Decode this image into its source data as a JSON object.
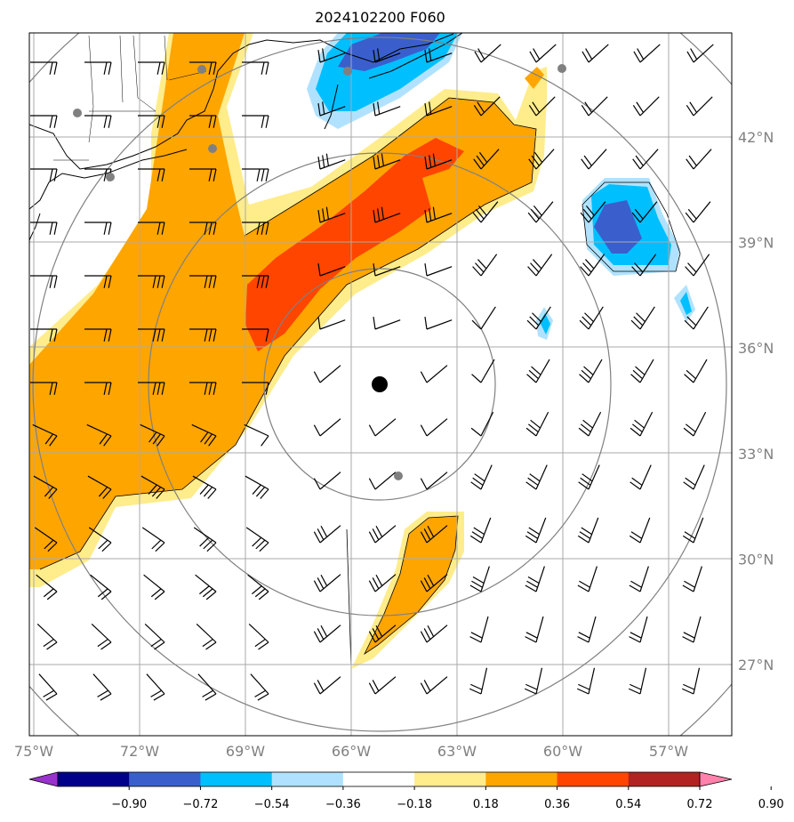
{
  "chart_data": {
    "type": "map-contour",
    "title": "2024102200 F060",
    "x_ticks": [
      {
        "lon": -75,
        "label": "75°W"
      },
      {
        "lon": -72,
        "label": "72°W"
      },
      {
        "lon": -69,
        "label": "69°W"
      },
      {
        "lon": -66,
        "label": "66°W"
      },
      {
        "lon": -63,
        "label": "63°W"
      },
      {
        "lon": -60,
        "label": "60°W"
      },
      {
        "lon": -57,
        "label": "57°W"
      }
    ],
    "y_ticks": [
      {
        "lat": 42,
        "label": "42°N"
      },
      {
        "lat": 39,
        "label": "39°N"
      },
      {
        "lat": 36,
        "label": "36°N"
      },
      {
        "lat": 33,
        "label": "33°N"
      },
      {
        "lat": 30,
        "label": "30°N"
      },
      {
        "lat": 27,
        "label": "27°N"
      }
    ],
    "xlim": [
      -75,
      -55
    ],
    "ylim": [
      25,
      45
    ],
    "grid": true,
    "range_rings": 4,
    "center": {
      "lon": -65.2,
      "lat": 35.0
    },
    "colorbar": {
      "ticks": [
        "−0.90",
        "−0.72",
        "−0.54",
        "−0.36",
        "−0.18",
        "0.18",
        "0.36",
        "0.54",
        "0.72",
        "0.90"
      ],
      "colors": [
        "#9932cc",
        "#00008b",
        "#3a5fcd",
        "#00bfff",
        "#b0e2ff",
        "#ffffff",
        "#ffec8b",
        "#ffa500",
        "#ff4500",
        "#b22222",
        "#ff82ab"
      ],
      "extend": "both"
    },
    "positive_regions": [
      {
        "level": "0.18–0.36",
        "color": "#ffec8b",
        "desc": "SW–NE band from 74.5W 30N to 62W 42N"
      },
      {
        "level": "0.36–0.54",
        "color": "#ffa500"
      },
      {
        "level": "0.54–0.72",
        "color": "#ff4500",
        "desc": "core near 69–63W, 36–41N"
      }
    ],
    "negative_regions": [
      {
        "level": "−0.36 – −0.72",
        "color": "#3a5fcd",
        "desc": "near 65W 44.5N and 59W 39.5N"
      }
    ]
  }
}
